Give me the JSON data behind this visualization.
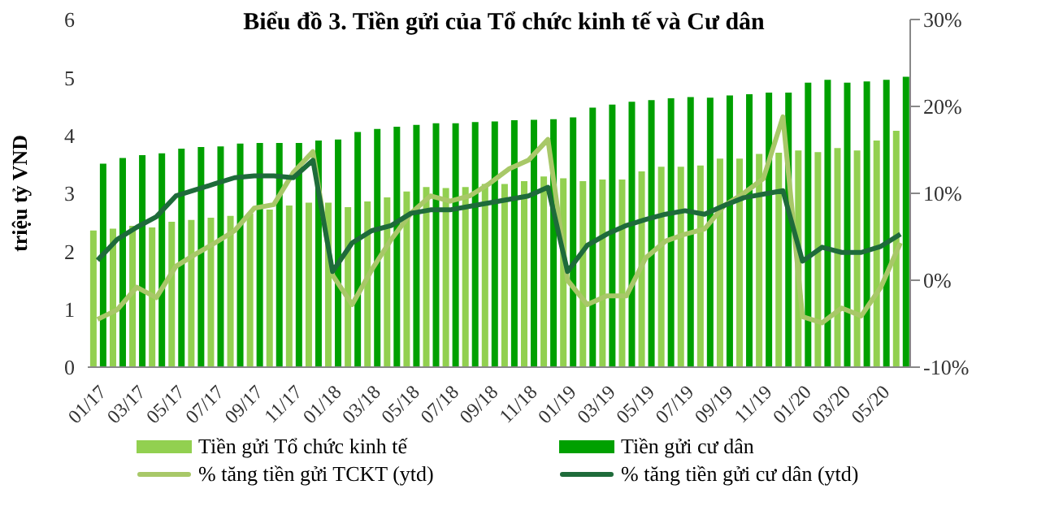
{
  "chart_data": {
    "type": "bar",
    "title": "Biểu đồ 3. Tiền gửi của Tổ chức kinh tế và Cư dân",
    "ylabel": "triệu tỷ VND",
    "categories": [
      "01/17",
      null,
      "03/17",
      null,
      "05/17",
      null,
      "07/17",
      null,
      "09/17",
      null,
      "11/17",
      null,
      "01/18",
      null,
      "03/18",
      null,
      "05/18",
      null,
      "07/18",
      null,
      "09/18",
      null,
      "11/18",
      null,
      "01/19",
      null,
      "03/19",
      null,
      "05/19",
      null,
      "07/19",
      null,
      "09/19",
      null,
      "11/19",
      null,
      "01/20",
      null,
      "03/20",
      null,
      "05/20",
      null
    ],
    "series": [
      {
        "name": "Tiền gửi Tổ chức kinh tế",
        "color": "#92d050",
        "values": [
          2.36,
          2.39,
          2.44,
          2.41,
          2.51,
          2.54,
          2.58,
          2.61,
          2.65,
          2.72,
          2.79,
          2.84,
          2.84,
          2.76,
          2.86,
          2.93,
          3.03,
          3.11,
          3.09,
          3.11,
          3.16,
          3.16,
          3.21,
          3.29,
          3.26,
          3.21,
          3.24,
          3.24,
          3.38,
          3.46,
          3.46,
          3.48,
          3.6,
          3.6,
          3.68,
          3.7,
          3.74,
          3.71,
          3.78,
          3.74,
          3.91,
          4.08
        ]
      },
      {
        "name": "Tiền gửi cư dân",
        "color": "#00a000",
        "values": [
          3.51,
          3.61,
          3.66,
          3.69,
          3.77,
          3.8,
          3.81,
          3.86,
          3.87,
          3.87,
          3.87,
          3.91,
          3.93,
          4.06,
          4.11,
          4.15,
          4.18,
          4.21,
          4.21,
          4.23,
          4.24,
          4.26,
          4.27,
          4.28,
          4.31,
          4.48,
          4.53,
          4.58,
          4.61,
          4.64,
          4.66,
          4.65,
          4.69,
          4.71,
          4.74,
          4.74,
          4.91,
          4.96,
          4.91,
          4.93,
          4.96,
          5.01
        ]
      },
      {
        "name": "% tăng tiền gửi TCKT (ytd)",
        "type": "line",
        "axis": "y2",
        "color": "#a8c868",
        "values": [
          -4.5,
          -3.4,
          -0.8,
          -2,
          1.6,
          3,
          4.3,
          5.7,
          8.3,
          8.7,
          12.4,
          14.8,
          0.6,
          -2.8,
          1.2,
          4.7,
          7.7,
          9.7,
          9.1,
          9.7,
          11.1,
          12.8,
          13.8,
          16.2,
          0,
          -2.8,
          -1.8,
          -1.8,
          2.6,
          4.5,
          5.3,
          5.9,
          8.6,
          10,
          11.7,
          18.8,
          -4.2,
          -4.9,
          -3.2,
          -4.1,
          -0.8,
          4.3
        ]
      },
      {
        "name": "% tăng tiền gửi cư dân (ytd)",
        "type": "line",
        "axis": "y2",
        "color": "#1e6b3a",
        "values": [
          2.3,
          4.7,
          6.1,
          7.3,
          9.7,
          10.4,
          11.1,
          11.8,
          12,
          12,
          11.8,
          13.8,
          1,
          4.3,
          5.7,
          6.3,
          7.7,
          8.1,
          8.1,
          8.5,
          8.9,
          9.3,
          9.7,
          10.7,
          1,
          4,
          5.3,
          6.3,
          7,
          7.6,
          8,
          7.6,
          8.6,
          9.5,
          9.9,
          10.3,
          2.2,
          3.8,
          3.2,
          3.2,
          3.9,
          5.3
        ]
      }
    ],
    "ylim": [
      0,
      6
    ],
    "yticks": [
      0,
      1,
      2,
      3,
      4,
      5,
      6
    ],
    "y2lim": [
      -10,
      30
    ],
    "y2ticks": [
      {
        "value": -10,
        "label": "-10%"
      },
      {
        "value": 0,
        "label": "0%"
      },
      {
        "value": 10,
        "label": "10%"
      },
      {
        "value": 20,
        "label": "20%"
      },
      {
        "value": 30,
        "label": "30%"
      }
    ],
    "legend": "bottom",
    "grid": false,
    "marker": "none",
    "line_style": "solid"
  }
}
